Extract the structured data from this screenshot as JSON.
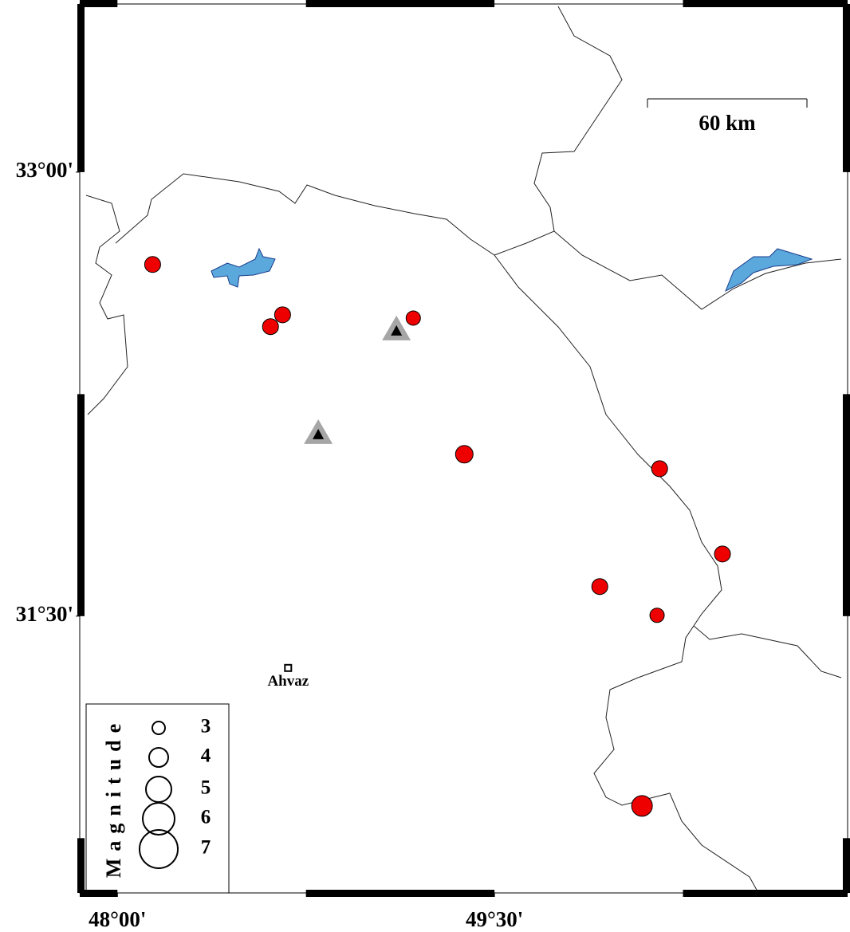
{
  "chart_data": {
    "type": "map",
    "xlim": [
      47.85,
      50.905
    ],
    "ylim": [
      30.565,
      33.568
    ],
    "xticks": [
      {
        "value": 48,
        "label": "48°00'"
      },
      {
        "value": 49.5,
        "label": "49°30'"
      }
    ],
    "yticks": [
      {
        "value": 33,
        "label": "33°00'"
      },
      {
        "value": 31.5,
        "label": "31°30'"
      }
    ],
    "scale_label": "60 km",
    "events": {
      "color": "#ee0000",
      "lon": [
        48.14,
        48.657,
        48.609,
        49.177,
        49.38,
        50.157,
        50.407,
        49.919,
        50.147,
        50.087
      ],
      "lat": [
        32.688,
        32.518,
        32.478,
        32.507,
        32.047,
        31.998,
        31.71,
        31.6,
        31.503,
        30.859
      ],
      "magnitude": [
        3.5,
        3.5,
        3.5,
        3.25,
        3.75,
        3.5,
        3.5,
        3.5,
        3.25,
        4.25
      ]
    },
    "stations": {
      "lon": [
        49.11,
        48.799
      ],
      "lat": [
        32.464,
        32.114
      ]
    },
    "city": {
      "name": "Ahvaz",
      "lon": 48.679,
      "lat": 31.325
    },
    "legend": {
      "title": "Magnitude",
      "magnitudes": [
        3,
        4,
        5,
        6,
        7
      ]
    }
  }
}
